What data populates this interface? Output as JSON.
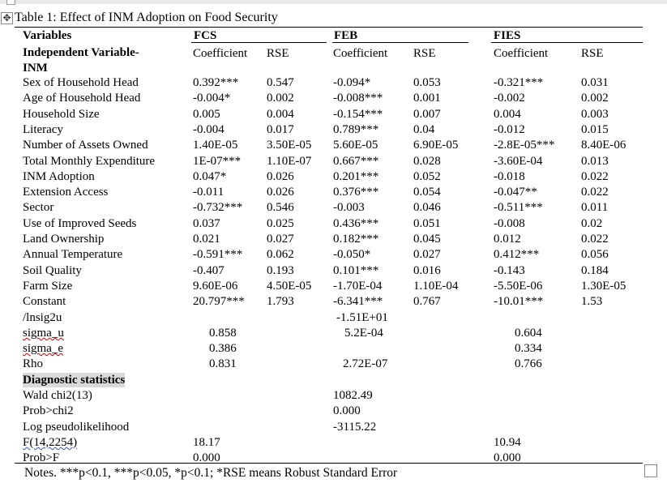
{
  "caption": "Table 1: Effect of INM Adoption on Food Security",
  "headers": {
    "variables": "Variables",
    "independent": "Independent Variable-",
    "inm": "INM",
    "groups": [
      "FCS",
      "FEB",
      "FIES"
    ],
    "coefficient": "Coefficient",
    "rse": "RSE"
  },
  "rows": [
    {
      "label": "Sex of Household Head",
      "v": [
        "0.392***",
        "0.547",
        "-0.094*",
        "0.053",
        "-0.321***",
        "0.031"
      ]
    },
    {
      "label": "Age of Household Head",
      "v": [
        "-0.004*",
        "0.002",
        "-0.008***",
        "0.001",
        "-0.002",
        "0.002"
      ]
    },
    {
      "label": "Household Size",
      "v": [
        "0.005",
        "0.004",
        "-0.154***",
        "0.007",
        "0.004",
        "0.003"
      ]
    },
    {
      "label": "Literacy",
      "v": [
        "-0.004",
        "0.017",
        "0.789***",
        "0.04",
        "-0.012",
        "0.015"
      ]
    },
    {
      "label": "Number of Assets Owned",
      "v": [
        "1.40E-05",
        "3.50E-05",
        "5.60E-05",
        "6.90E-05",
        "-2.8E-05***",
        "8.40E-06"
      ]
    },
    {
      "label": "Total Monthly Expenditure",
      "v": [
        "1E-07***",
        "1.10E-07",
        "0.667***",
        "0.028",
        "-3.60E-04",
        "0.013"
      ]
    },
    {
      "label": "INM Adoption",
      "v": [
        "0.047*",
        "0.026",
        "0.201***",
        "0.052",
        "-0.018",
        "0.022"
      ]
    },
    {
      "label": "Extension Access",
      "v": [
        "-0.011",
        "0.026",
        "0.376***",
        "0.054",
        "-0.047**",
        "0.022"
      ]
    },
    {
      "label": "Sector",
      "v": [
        "-0.732***",
        "0.546",
        "-0.003",
        "0.046",
        "-0.511***",
        "0.011"
      ]
    },
    {
      "label": "Use of Improved Seeds",
      "v": [
        "0.037",
        "0.025",
        "0.436***",
        "0.051",
        "-0.008",
        "0.02"
      ]
    },
    {
      "label": "Land Ownership",
      "v": [
        "0.021",
        "0.027",
        "0.182***",
        "0.045",
        "0.012",
        "0.022"
      ]
    },
    {
      "label": "Annual Temperature",
      "v": [
        "-0.591***",
        "0.062",
        "-0.050*",
        "0.027",
        "0.412***",
        "0.056"
      ]
    },
    {
      "label": "Soil Quality",
      "v": [
        "-0.407",
        "0.193",
        "0.101***",
        "0.016",
        "-0.143",
        "0.184"
      ]
    },
    {
      "label": "Farm Size",
      "v": [
        "9.60E-06",
        "4.50E-05",
        "-1.70E-04",
        "1.10E-04",
        "-5.50E-06",
        "1.30E-05"
      ]
    },
    {
      "label": "Constant",
      "v": [
        "20.797***",
        "1.793",
        "-6.341***",
        "0.767",
        "-10.01***",
        "1.53"
      ]
    }
  ],
  "variance_rows": [
    {
      "label": "/lnsig2u",
      "fcs": "",
      "feb": "-1.51E+01",
      "fies": ""
    },
    {
      "label": "sigma_u",
      "fcs": "0.858",
      "feb": "5.2E-04",
      "fies": "0.604"
    },
    {
      "label": "sigma_e",
      "fcs": "0.386",
      "feb": "",
      "fies": "0.334"
    },
    {
      "label": "Rho",
      "fcs": "0.831",
      "feb": "2.72E-07",
      "fies": "0.766"
    }
  ],
  "diagnostics": {
    "heading": "Diagnostic statistics",
    "rows": [
      {
        "label": "Wald chi2(13)",
        "fcs": "",
        "feb": "1082.49",
        "fies": ""
      },
      {
        "label": "Prob>chi2",
        "fcs": "",
        "feb": "0.000",
        "fies": ""
      },
      {
        "label": "Log pseudolikelihood",
        "fcs": "",
        "feb": "-3115.22",
        "fies": ""
      },
      {
        "label": "F(14,2254)",
        "fcs": "18.17",
        "feb": "",
        "fies": "10.94"
      },
      {
        "label": "Prob>F",
        "fcs": "0.000",
        "feb": "",
        "fies": "0.000"
      }
    ]
  },
  "notes": "Notes. ***p<0.1, ***p<0.05, *p<0.1; *RSE means Robust Standard Error",
  "icons": {
    "move": "move-handle-icon",
    "resize": "resize-handle-icon"
  }
}
